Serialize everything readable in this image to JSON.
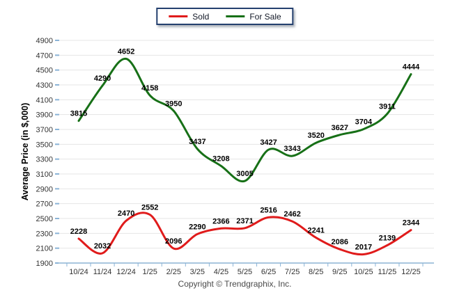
{
  "chart_data": {
    "type": "line",
    "smooth": true,
    "title": "",
    "xlabel": "",
    "ylabel": "Average Price (in $,000)",
    "categories": [
      "10/24",
      "11/24",
      "12/24",
      "1/25",
      "2/25",
      "3/25",
      "4/25",
      "5/25",
      "6/25",
      "7/25",
      "8/25",
      "9/25",
      "10/25",
      "11/25",
      "12/25"
    ],
    "series": [
      {
        "name": "Sold",
        "color": "#e01b1b",
        "values": [
          2228,
          2032,
          2470,
          2552,
          2096,
          2290,
          2366,
          2371,
          2516,
          2462,
          2241,
          2086,
          2017,
          2139,
          2344
        ]
      },
      {
        "name": "For Sale",
        "color": "#177017",
        "values": [
          3815,
          4290,
          4652,
          4158,
          3950,
          3437,
          3208,
          3005,
          3427,
          3343,
          3520,
          3627,
          3704,
          3911,
          4444
        ]
      }
    ],
    "ylim": [
      1900,
      4900
    ],
    "ytick_step": 200,
    "grid": "horizontal",
    "legend_position": "top-center",
    "data_labels": true
  },
  "legend": {
    "items": [
      {
        "label": "Sold"
      },
      {
        "label": "For Sale"
      }
    ]
  },
  "footer": {
    "copyright": "Copyright © Trendgraphix, Inc."
  },
  "colors": {
    "gridline": "#e4e4e4",
    "axis_line": "#a9c6df",
    "axis_tick": "#8ab3d6",
    "tick_label": "#333333",
    "data_label": "#000000",
    "axis_title": "#000000",
    "footer_text": "#4a4a4a",
    "legend_border": "#24406e"
  }
}
